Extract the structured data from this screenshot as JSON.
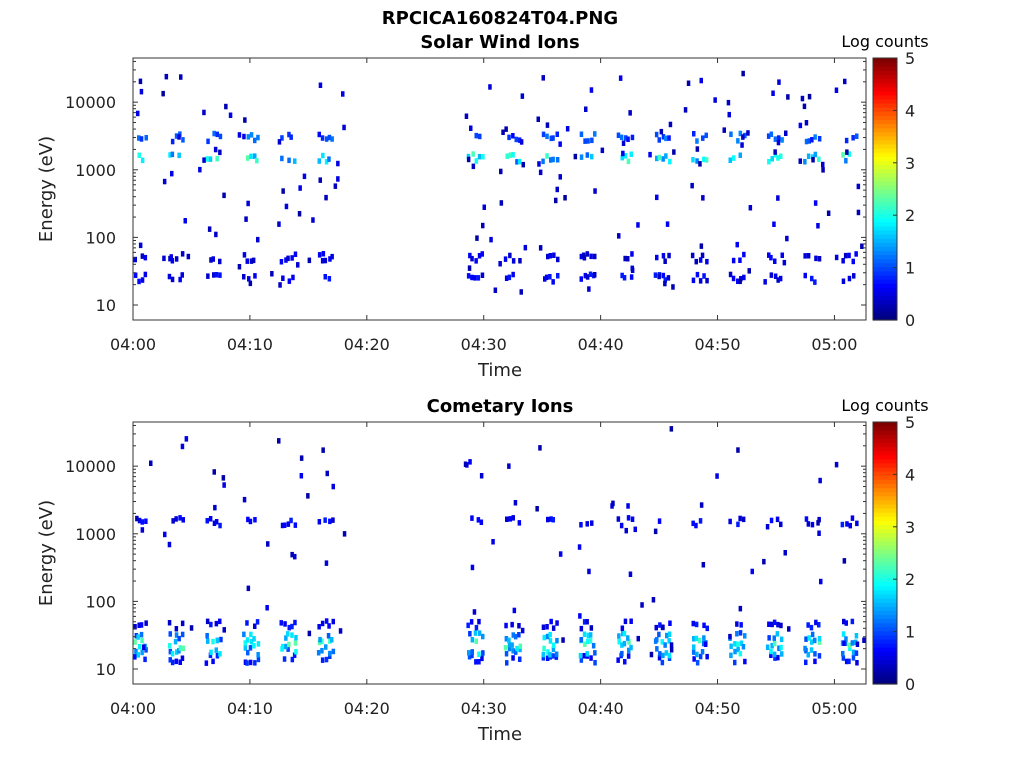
{
  "figure_title": "RPCICA160824T04.PNG",
  "colorbar": {
    "label": "Log counts",
    "ticks": [
      "0",
      "1",
      "2",
      "3",
      "4",
      "5"
    ],
    "range": [
      0,
      5
    ],
    "colormap": "jet"
  },
  "chart_data": [
    {
      "type": "heatmap",
      "title": "Solar Wind Ions",
      "xlabel": "Time",
      "ylabel": "Energy (eV)",
      "yscale": "log",
      "ylim": [
        6,
        45000
      ],
      "x_tick_labels": [
        "04:00",
        "04:10",
        "04:20",
        "04:30",
        "04:40",
        "04:50",
        "05:00"
      ],
      "y_tick_labels": [
        "10",
        "100",
        "1000",
        "10000"
      ],
      "bursts_min": [
        0,
        3.2,
        6.4,
        9.6,
        12.8,
        16.0,
        28.8,
        32.0,
        35.2,
        38.4,
        41.6,
        44.8,
        48.0,
        51.2,
        54.4,
        57.6,
        60.8
      ],
      "main_bands": [
        {
          "energy_ev": 1500,
          "log_counts": 1.8
        },
        {
          "energy_ev": 3000,
          "log_counts": 1.0
        },
        {
          "energy_ev": 25,
          "log_counts": 0.6
        },
        {
          "energy_ev": 50,
          "log_counts": 0.5
        }
      ],
      "data_gap_min": [
        18.2,
        27.8
      ]
    },
    {
      "type": "heatmap",
      "title": "Cometary Ions",
      "xlabel": "Time",
      "ylabel": "Energy (eV)",
      "yscale": "log",
      "ylim": [
        6,
        45000
      ],
      "x_tick_labels": [
        "04:00",
        "04:10",
        "04:20",
        "04:30",
        "04:40",
        "04:50",
        "05:00"
      ],
      "y_tick_labels": [
        "10",
        "100",
        "1000",
        "10000"
      ],
      "bursts_min": [
        0,
        3.2,
        6.4,
        9.6,
        12.8,
        16.0,
        28.8,
        32.0,
        35.2,
        38.4,
        41.6,
        44.8,
        48.0,
        51.2,
        54.4,
        57.6,
        60.8
      ],
      "main_bands": [
        {
          "energy_ev": 14,
          "log_counts": 0.8
        },
        {
          "energy_ev": 18,
          "log_counts": 1.5
        },
        {
          "energy_ev": 23,
          "log_counts": 1.8
        },
        {
          "energy_ev": 30,
          "log_counts": 1.4
        },
        {
          "energy_ev": 45,
          "log_counts": 0.6
        },
        {
          "energy_ev": 1500,
          "log_counts": 0.6
        }
      ],
      "data_gap_min": [
        18.2,
        27.8
      ]
    }
  ]
}
